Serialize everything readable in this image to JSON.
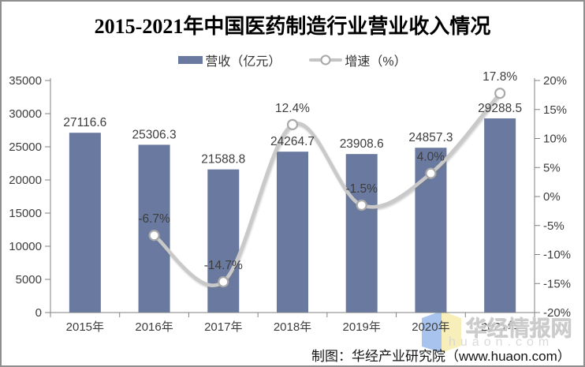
{
  "title": "2015-2021年中国医药制造行业营业收入情况",
  "legend": [
    {
      "label": "营收（亿元）",
      "type": "bar"
    },
    {
      "label": "增速（%）",
      "type": "line"
    }
  ],
  "chart_data": {
    "type": "bar",
    "categories": [
      "2015年",
      "2016年",
      "2017年",
      "2018年",
      "2019年",
      "2020年",
      "2021年"
    ],
    "series": [
      {
        "name": "营收（亿元）",
        "type": "bar",
        "axis": "left",
        "values": [
          27116.6,
          25306.3,
          21588.8,
          24264.7,
          23908.6,
          24857.3,
          29288.5
        ],
        "display": [
          "27116.6",
          "25306.3",
          "21588.8",
          "24264.7",
          "23908.6",
          "24857.3",
          "29288.5"
        ]
      },
      {
        "name": "增速（%）",
        "type": "line",
        "axis": "right",
        "values": [
          null,
          -6.7,
          -14.7,
          12.4,
          -1.5,
          4.0,
          17.8
        ],
        "display": [
          "",
          "-6.7%",
          "-14.7%",
          "12.4%",
          "-1.5%",
          "4.0%",
          "17.8%"
        ]
      }
    ],
    "left_axis": {
      "min": 0,
      "max": 35000,
      "ticks": [
        "35000",
        "30000",
        "25000",
        "20000",
        "15000",
        "10000",
        "5000",
        "0"
      ]
    },
    "right_axis": {
      "min": -20,
      "max": 20,
      "ticks": [
        "20%",
        "15%",
        "10%",
        "5%",
        "0%",
        "-5%",
        "-10%",
        "-15%",
        "-20%"
      ]
    },
    "grid": false,
    "legend_position": "top"
  },
  "watermark": {
    "brand": "华经情报网",
    "domain_text": "huaon.com"
  },
  "credit": "制图：华经产业研究院（www.huaon.com）",
  "colors": {
    "bar": "#69799F",
    "line": "#C9C9C9",
    "marker_fill": "#FFFFFF",
    "marker_stroke": "#A9A9A9",
    "text": "#3D3D3D",
    "axis": "#808080",
    "logo_blue": "#9DBCEC",
    "logo_yellow": "#F8ECB0"
  }
}
